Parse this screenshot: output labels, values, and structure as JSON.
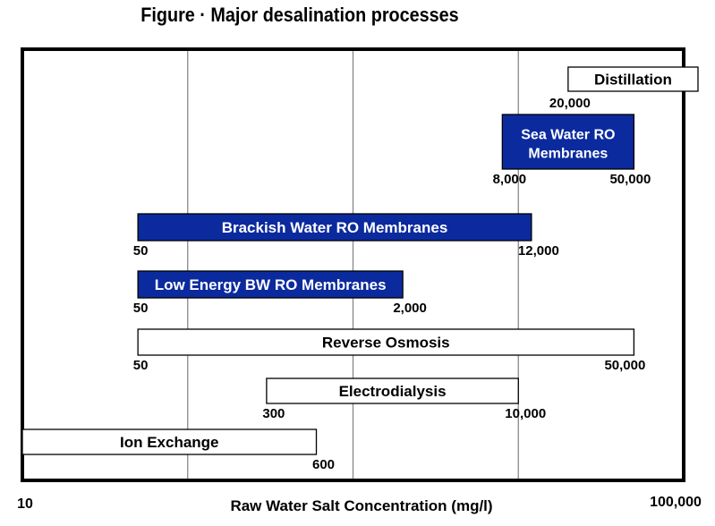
{
  "chart_data": {
    "type": "range-bar",
    "title": "Figure · Major desalination processes",
    "xlabel": "Raw Water Salt Concentration (mg/l)",
    "x_scale": "log",
    "xlim": [
      10,
      100000
    ],
    "x_tick_labels": [
      "10",
      "100,000"
    ],
    "grid": "vertical lines at 100, 1,000, 10,000",
    "colors": {
      "filled": "#0b2a9e",
      "outline": "#000000"
    },
    "series": [
      {
        "name": "Distillation",
        "start": 20000,
        "end": null,
        "open_ended": true,
        "start_label": "20,000",
        "end_label": "",
        "filled": false
      },
      {
        "name": "Sea Water RO Membranes",
        "start": 8000,
        "end": 50000,
        "start_label": "8,000",
        "end_label": "50,000",
        "filled": true
      },
      {
        "name": "Brackish Water RO Membranes",
        "start": 50,
        "end": 12000,
        "start_label": "50",
        "end_label": "12,000",
        "filled": true
      },
      {
        "name": "Low Energy BW  RO Membranes",
        "start": 50,
        "end": 2000,
        "start_label": "50",
        "end_label": "2,000",
        "filled": true
      },
      {
        "name": "Reverse Osmosis",
        "start": 50,
        "end": 50000,
        "start_label": "50",
        "end_label": "50,000",
        "filled": false
      },
      {
        "name": "Electrodialysis",
        "start": 300,
        "end": 10000,
        "start_label": "300",
        "end_label": "10,000",
        "filled": false
      },
      {
        "name": "Ion Exchange",
        "start": 10,
        "end": 600,
        "start_label": "",
        "end_label": "600",
        "filled": false
      }
    ]
  }
}
